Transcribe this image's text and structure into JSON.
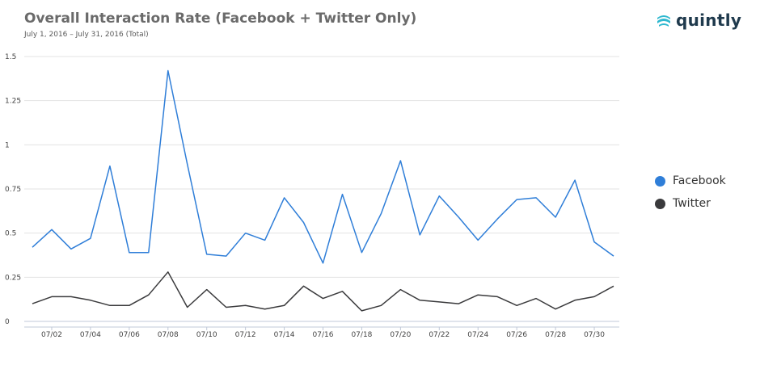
{
  "header": {
    "title": "Overall Interaction Rate (Facebook + Twitter Only)",
    "subtitle": "July 1, 2016 – July 31, 2016 (Total)"
  },
  "brand": {
    "name": "quintly",
    "icon": "quintly-logo-icon",
    "color": "#2eb8cf"
  },
  "chart_data": {
    "type": "line",
    "x": [
      "07/01",
      "07/02",
      "07/03",
      "07/04",
      "07/05",
      "07/06",
      "07/07",
      "07/08",
      "07/09",
      "07/10",
      "07/11",
      "07/12",
      "07/13",
      "07/14",
      "07/15",
      "07/16",
      "07/17",
      "07/18",
      "07/19",
      "07/20",
      "07/21",
      "07/22",
      "07/23",
      "07/24",
      "07/25",
      "07/26",
      "07/27",
      "07/28",
      "07/29",
      "07/30",
      "07/31"
    ],
    "x_tick_labels": [
      "07/02",
      "07/04",
      "07/06",
      "07/08",
      "07/10",
      "07/12",
      "07/14",
      "07/16",
      "07/18",
      "07/20",
      "07/22",
      "07/24",
      "07/26",
      "07/28",
      "07/30"
    ],
    "y_tick_labels": [
      "0",
      "0.25",
      "0.5",
      "0.75",
      "1",
      "1.25",
      "1.5"
    ],
    "ylim": [
      0,
      1.5
    ],
    "grid": true,
    "legend_position": "right",
    "series": [
      {
        "name": "Facebook",
        "color": "#2f7ed8",
        "values": [
          0.42,
          0.52,
          0.41,
          0.47,
          0.88,
          0.39,
          0.39,
          1.42,
          0.89,
          0.38,
          0.37,
          0.5,
          0.46,
          0.7,
          0.56,
          0.33,
          0.72,
          0.39,
          0.61,
          0.91,
          0.49,
          0.71,
          0.59,
          0.46,
          0.58,
          0.69,
          0.7,
          0.59,
          0.8,
          0.45,
          0.37
        ]
      },
      {
        "name": "Twitter",
        "color": "#3a3a3c",
        "values": [
          0.1,
          0.14,
          0.14,
          0.12,
          0.09,
          0.09,
          0.15,
          0.28,
          0.08,
          0.18,
          0.08,
          0.09,
          0.07,
          0.09,
          0.2,
          0.13,
          0.17,
          0.06,
          0.09,
          0.18,
          0.12,
          0.11,
          0.1,
          0.15,
          0.14,
          0.09,
          0.13,
          0.07,
          0.12,
          0.14,
          0.2
        ]
      }
    ]
  }
}
